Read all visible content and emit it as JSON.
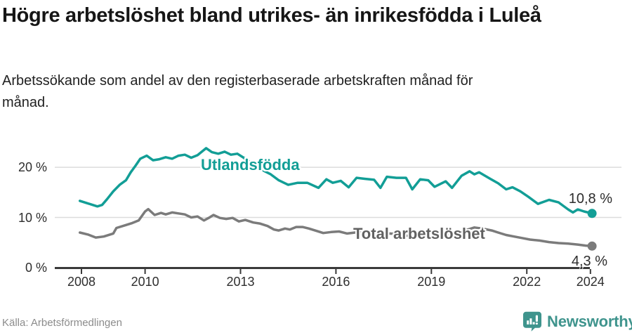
{
  "header": {
    "title": "Högre arbetslöshet bland utrikes- än inrikesfödda i Luleå",
    "subtitle": "Arbetssökande som andel av den registerbaserade arbetskraften månad för månad."
  },
  "footer": {
    "source": "Källa: Arbetsförmedlingen",
    "brand": "Newsworthy",
    "brand_color": "#3f948d"
  },
  "chart_data": {
    "type": "line",
    "title": "Högre arbetslöshet bland utrikes- än inrikesfödda i Luleå",
    "subtitle": "Arbetssökande som andel av den registerbaserade arbetskraften månad för månad.",
    "source": "Källa: Arbetsförmedlingen",
    "grid": "horizontal-only",
    "legend_position": "inline-labels-on-lines",
    "x_axis": {
      "unit": "year",
      "min": 2008,
      "max": 2024.1,
      "ticks": [
        2008,
        2010,
        2013,
        2016,
        2019,
        2022,
        2024
      ]
    },
    "y_axis": {
      "unit": "%",
      "min": 0,
      "max": 25,
      "ticks": [
        0,
        10,
        20
      ],
      "labels": [
        "0 %",
        "10 %",
        "20 %"
      ],
      "gridlines": [
        10,
        20
      ]
    },
    "series": [
      {
        "name": "Utlandsfödda",
        "color": "#129e96",
        "end_value": 10.8,
        "end_label": "10,8 %",
        "points": [
          [
            2007.95,
            13.3
          ],
          [
            2008.15,
            12.9
          ],
          [
            2008.3,
            12.6
          ],
          [
            2008.5,
            12.2
          ],
          [
            2008.65,
            12.5
          ],
          [
            2008.8,
            13.6
          ],
          [
            2009.0,
            15.2
          ],
          [
            2009.2,
            16.5
          ],
          [
            2009.4,
            17.4
          ],
          [
            2009.55,
            19.0
          ],
          [
            2009.7,
            20.3
          ],
          [
            2009.85,
            21.7
          ],
          [
            2010.05,
            22.3
          ],
          [
            2010.25,
            21.4
          ],
          [
            2010.45,
            21.6
          ],
          [
            2010.65,
            22.0
          ],
          [
            2010.85,
            21.7
          ],
          [
            2011.05,
            22.3
          ],
          [
            2011.25,
            22.5
          ],
          [
            2011.45,
            21.9
          ],
          [
            2011.65,
            22.4
          ],
          [
            2011.92,
            23.8
          ],
          [
            2012.1,
            23.0
          ],
          [
            2012.3,
            22.7
          ],
          [
            2012.5,
            23.1
          ],
          [
            2012.7,
            22.5
          ],
          [
            2012.9,
            22.7
          ],
          [
            2013.1,
            21.9
          ],
          [
            2013.4,
            20.6
          ],
          [
            2013.7,
            19.4
          ],
          [
            2013.95,
            18.6
          ],
          [
            2014.2,
            17.4
          ],
          [
            2014.5,
            16.5
          ],
          [
            2014.8,
            16.9
          ],
          [
            2015.1,
            16.9
          ],
          [
            2015.45,
            15.9
          ],
          [
            2015.7,
            17.6
          ],
          [
            2015.9,
            16.9
          ],
          [
            2016.15,
            17.3
          ],
          [
            2016.4,
            16.0
          ],
          [
            2016.65,
            17.9
          ],
          [
            2016.9,
            17.7
          ],
          [
            2017.2,
            17.5
          ],
          [
            2017.4,
            15.9
          ],
          [
            2017.6,
            18.1
          ],
          [
            2017.9,
            17.9
          ],
          [
            2018.2,
            17.9
          ],
          [
            2018.4,
            15.6
          ],
          [
            2018.65,
            17.6
          ],
          [
            2018.9,
            17.4
          ],
          [
            2019.1,
            16.1
          ],
          [
            2019.45,
            17.2
          ],
          [
            2019.65,
            15.9
          ],
          [
            2019.95,
            18.3
          ],
          [
            2020.2,
            19.2
          ],
          [
            2020.35,
            18.6
          ],
          [
            2020.5,
            19.0
          ],
          [
            2020.85,
            17.7
          ],
          [
            2021.1,
            16.8
          ],
          [
            2021.35,
            15.6
          ],
          [
            2021.55,
            16.0
          ],
          [
            2021.8,
            15.2
          ],
          [
            2022.05,
            14.1
          ],
          [
            2022.35,
            12.7
          ],
          [
            2022.7,
            13.5
          ],
          [
            2023.0,
            13.0
          ],
          [
            2023.3,
            11.6
          ],
          [
            2023.45,
            11.0
          ],
          [
            2023.6,
            11.6
          ],
          [
            2023.8,
            11.2
          ],
          [
            2024.05,
            10.8
          ]
        ]
      },
      {
        "name": "Total arbetslöshet",
        "color": "#7b7b7b",
        "label_color": "#616161",
        "end_value": 4.3,
        "end_label": "4,3 %",
        "points": [
          [
            2007.95,
            7.0
          ],
          [
            2008.2,
            6.6
          ],
          [
            2008.45,
            6.0
          ],
          [
            2008.7,
            6.2
          ],
          [
            2009.0,
            6.8
          ],
          [
            2009.1,
            7.9
          ],
          [
            2009.4,
            8.5
          ],
          [
            2009.6,
            8.9
          ],
          [
            2009.8,
            9.4
          ],
          [
            2010.0,
            11.2
          ],
          [
            2010.1,
            11.65
          ],
          [
            2010.3,
            10.5
          ],
          [
            2010.5,
            10.9
          ],
          [
            2010.65,
            10.6
          ],
          [
            2010.85,
            11.0
          ],
          [
            2011.05,
            10.8
          ],
          [
            2011.25,
            10.6
          ],
          [
            2011.45,
            10.0
          ],
          [
            2011.65,
            10.2
          ],
          [
            2011.85,
            9.4
          ],
          [
            2012.0,
            9.9
          ],
          [
            2012.15,
            10.5
          ],
          [
            2012.35,
            9.9
          ],
          [
            2012.55,
            9.7
          ],
          [
            2012.75,
            9.9
          ],
          [
            2012.95,
            9.2
          ],
          [
            2013.15,
            9.5
          ],
          [
            2013.4,
            9.0
          ],
          [
            2013.6,
            8.8
          ],
          [
            2013.85,
            8.3
          ],
          [
            2014.05,
            7.6
          ],
          [
            2014.2,
            7.4
          ],
          [
            2014.4,
            7.8
          ],
          [
            2014.55,
            7.6
          ],
          [
            2014.75,
            8.1
          ],
          [
            2014.95,
            8.1
          ],
          [
            2015.15,
            7.8
          ],
          [
            2015.4,
            7.3
          ],
          [
            2015.6,
            6.9
          ],
          [
            2015.85,
            7.1
          ],
          [
            2016.1,
            7.2
          ],
          [
            2016.35,
            6.8
          ],
          [
            2016.6,
            7.0
          ],
          [
            2016.9,
            7.2
          ],
          [
            2017.15,
            6.8
          ],
          [
            2017.4,
            6.5
          ],
          [
            2017.7,
            6.8
          ],
          [
            2018.0,
            6.6
          ],
          [
            2018.3,
            6.3
          ],
          [
            2018.6,
            6.6
          ],
          [
            2018.9,
            6.4
          ],
          [
            2019.2,
            6.2
          ],
          [
            2019.5,
            6.4
          ],
          [
            2019.8,
            6.6
          ],
          [
            2020.1,
            7.5
          ],
          [
            2020.35,
            8.0
          ],
          [
            2020.6,
            7.8
          ],
          [
            2020.9,
            7.4
          ],
          [
            2021.1,
            7.0
          ],
          [
            2021.35,
            6.5
          ],
          [
            2021.6,
            6.2
          ],
          [
            2021.85,
            5.9
          ],
          [
            2022.1,
            5.6
          ],
          [
            2022.4,
            5.4
          ],
          [
            2022.7,
            5.1
          ],
          [
            2023.0,
            4.9
          ],
          [
            2023.3,
            4.8
          ],
          [
            2023.6,
            4.6
          ],
          [
            2023.85,
            4.4
          ],
          [
            2024.05,
            4.3
          ]
        ]
      }
    ]
  }
}
